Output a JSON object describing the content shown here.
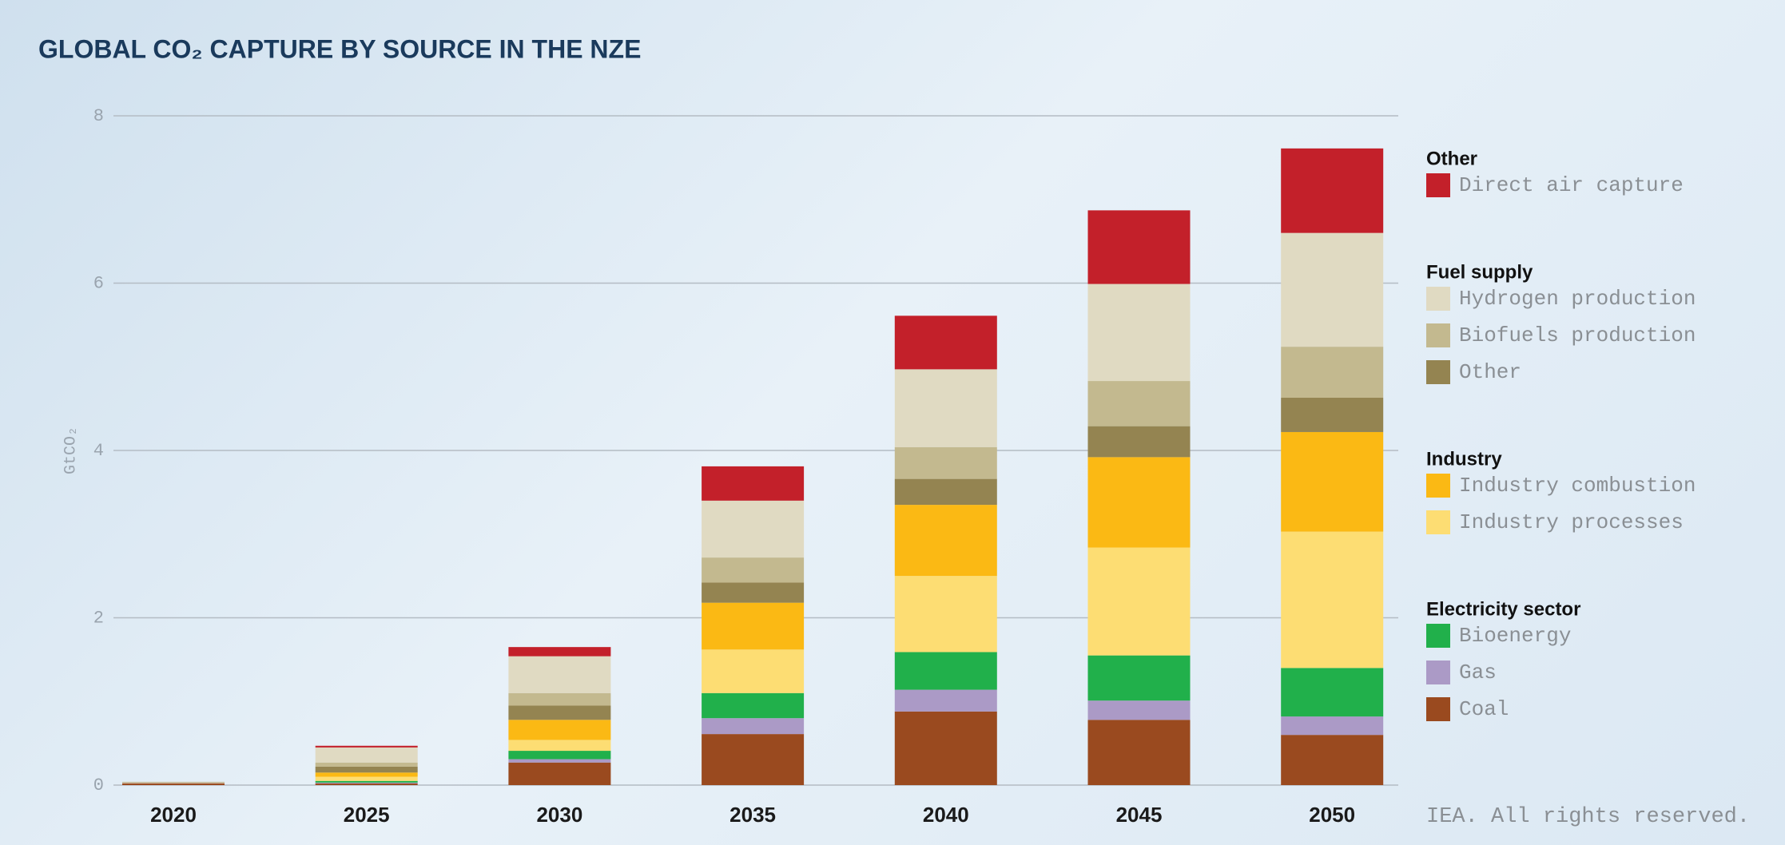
{
  "chart_data": {
    "type": "stacked_bar",
    "title": "GLOBAL CO₂ CAPTURE BY SOURCE IN THE NZE",
    "y_label": "GtCO₂",
    "footer": "IEA. All rights reserved.",
    "categories": [
      "2020",
      "2025",
      "2030",
      "2035",
      "2040",
      "2045",
      "2050"
    ],
    "ylim": [
      0,
      8
    ],
    "yticks": [
      0,
      2,
      4,
      6,
      8
    ],
    "grid": true,
    "legend_groups": [
      "Other",
      "Fuel supply",
      "Industry",
      "Electricity sector"
    ],
    "series": [
      {
        "name": "Coal",
        "group": "Electricity sector",
        "color": "#9a4a1f",
        "values": [
          0.02,
          0.02,
          0.27,
          0.61,
          0.88,
          0.78,
          0.6
        ]
      },
      {
        "name": "Gas",
        "group": "Electricity sector",
        "color": "#ab9ac6",
        "values": [
          0.005,
          0.01,
          0.04,
          0.19,
          0.26,
          0.23,
          0.22
        ]
      },
      {
        "name": "Bioenergy",
        "group": "Electricity sector",
        "color": "#21b04b",
        "values": [
          0,
          0.02,
          0.1,
          0.3,
          0.45,
          0.54,
          0.58
        ]
      },
      {
        "name": "Industry processes",
        "group": "Industry",
        "color": "#fddd73",
        "values": [
          0.005,
          0.05,
          0.13,
          0.52,
          0.91,
          1.29,
          1.63
        ]
      },
      {
        "name": "Industry combustion",
        "group": "Industry",
        "color": "#fbb914",
        "values": [
          0,
          0.05,
          0.24,
          0.56,
          0.85,
          1.08,
          1.19
        ]
      },
      {
        "name": "Other",
        "group": "Fuel supply",
        "color": "#948451",
        "values": [
          0.005,
          0.07,
          0.17,
          0.24,
          0.31,
          0.37,
          0.41
        ]
      },
      {
        "name": "Biofuels production",
        "group": "Fuel supply",
        "color": "#c3b98f",
        "values": [
          0,
          0.05,
          0.15,
          0.3,
          0.38,
          0.54,
          0.61
        ]
      },
      {
        "name": "Hydrogen production",
        "group": "Fuel supply",
        "color": "#e0dac2",
        "values": [
          0.005,
          0.18,
          0.44,
          0.68,
          0.93,
          1.16,
          1.36
        ]
      },
      {
        "name": "Direct air capture",
        "group": "Other",
        "color": "#c3202a",
        "values": [
          0,
          0.02,
          0.11,
          0.41,
          0.64,
          0.88,
          1.01
        ]
      }
    ]
  }
}
